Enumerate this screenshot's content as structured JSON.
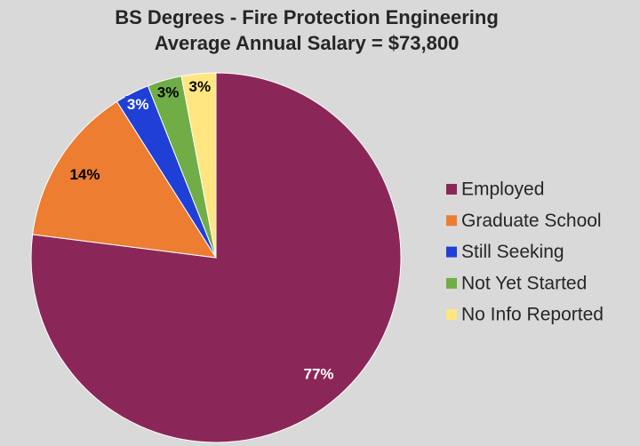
{
  "chart_data": {
    "type": "pie",
    "title": "BS Degrees - Fire Protection Engineering",
    "subtitle": "Average Annual Salary = $73,800",
    "categories": [
      "Employed",
      "Graduate School",
      "Still Seeking",
      "Not Yet Started",
      "No Info Reported"
    ],
    "values": [
      77,
      14,
      3,
      3,
      3
    ],
    "value_labels": [
      "77%",
      "14%",
      "3%",
      "3%",
      "3%"
    ],
    "colors": [
      "#8b2758",
      "#ed7d31",
      "#1f3fd6",
      "#70ad47",
      "#ffe680"
    ],
    "legend": "right"
  }
}
